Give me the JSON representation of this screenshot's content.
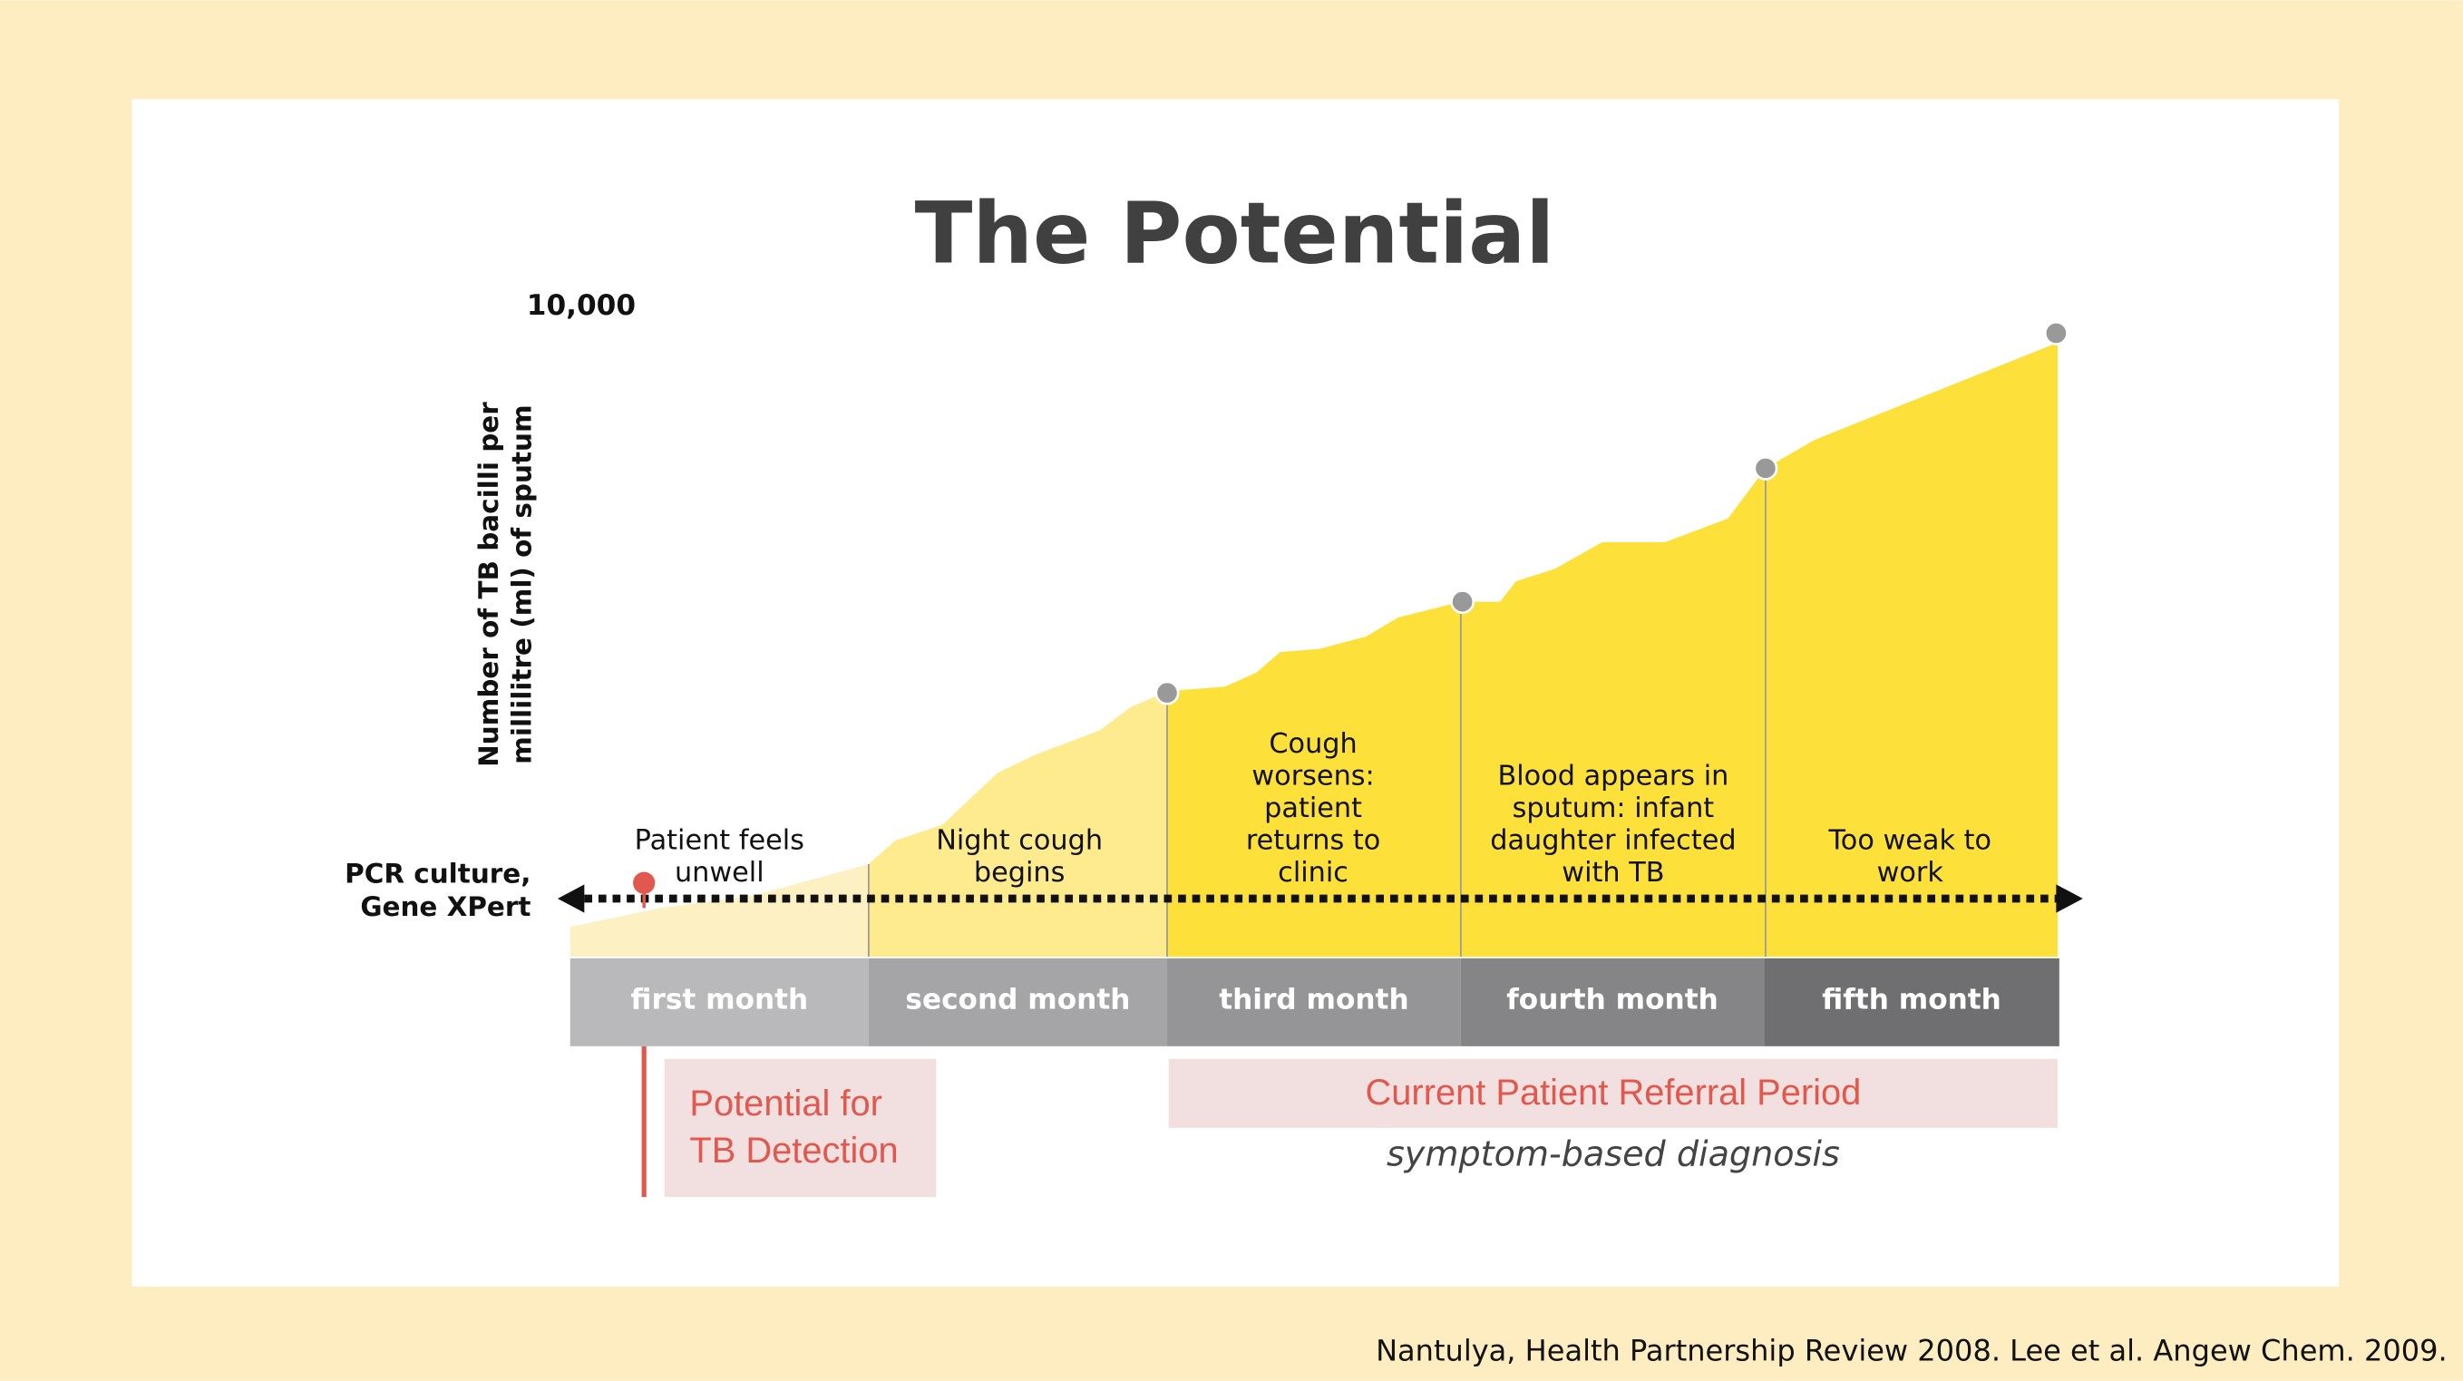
{
  "title": "The Potential",
  "y_axis": {
    "top_label": "10,000",
    "label_lines": [
      "Number of TB bacilli per",
      "millilitre (ml) of sputum"
    ]
  },
  "test_label_lines": [
    "PCR culture,",
    "Gene XPert"
  ],
  "months": [
    "first month",
    "second month",
    "third month",
    "fourth month",
    "fifth month"
  ],
  "stages": [
    {
      "lines": [
        "Patient feels",
        "unwell"
      ]
    },
    {
      "lines": [
        "Night cough",
        "begins"
      ]
    },
    {
      "lines": [
        "Cough",
        "worsens:",
        "patient",
        "returns to",
        "clinic"
      ]
    },
    {
      "lines": [
        "Blood appears in",
        "sputum: infant",
        "daughter infected",
        "with TB"
      ]
    },
    {
      "lines": [
        "Too weak to",
        "work"
      ]
    }
  ],
  "detection_box": {
    "lines": [
      "Potential for",
      "TB Detection"
    ]
  },
  "referral_box": {
    "label": "Current Patient Referral Period",
    "note": "symptom-based diagnosis"
  },
  "citation": "Nantulya, Health Partnership Review 2008.  Lee et al. Angew Chem. 2009."
}
